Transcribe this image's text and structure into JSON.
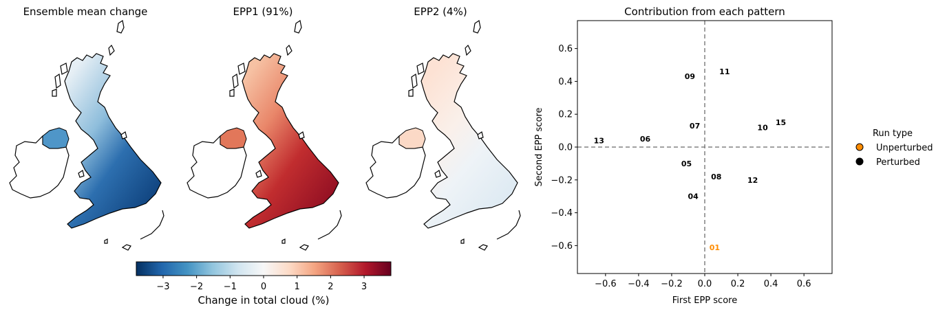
{
  "maps": [
    {
      "title": "Ensemble mean change"
    },
    {
      "title": "EPP1 (91%)"
    },
    {
      "title": "EPP2 (4%)"
    }
  ],
  "colorbar": {
    "label": "Change in total cloud (%)",
    "ticks": [
      -3,
      -2,
      -1,
      0,
      1,
      2,
      3
    ],
    "range": [
      -3.8,
      3.8
    ],
    "colormap": [
      "#053061",
      "#2166ac",
      "#4393c3",
      "#92c5de",
      "#d1e5f0",
      "#f7f7f7",
      "#fddbc7",
      "#f4a582",
      "#d6604d",
      "#b2182b",
      "#67001f"
    ]
  },
  "chart_data": {
    "type": "scatter",
    "title": "Contribution from each pattern",
    "xlabel": "First EPP score",
    "ylabel": "Second EPP score",
    "xlim": [
      -0.77,
      0.77
    ],
    "ylim": [
      -0.77,
      0.77
    ],
    "xticks": [
      -0.6,
      -0.4,
      -0.2,
      0.0,
      0.2,
      0.4,
      0.6
    ],
    "yticks": [
      -0.6,
      -0.4,
      -0.2,
      0.0,
      0.2,
      0.4,
      0.6
    ],
    "reference_lines": {
      "x": 0,
      "y": 0,
      "style": "dashed",
      "color": "#808080"
    },
    "legend": {
      "title": "Run type",
      "placement": "outside-right",
      "entries": [
        {
          "label": "Unperturbed",
          "color": "#ff8c00"
        },
        {
          "label": "Perturbed",
          "color": "#000000"
        }
      ]
    },
    "points": [
      {
        "label": "01",
        "x": 0.06,
        "y": -0.61,
        "type": "Unperturbed"
      },
      {
        "label": "04",
        "x": -0.07,
        "y": -0.3,
        "type": "Perturbed"
      },
      {
        "label": "05",
        "x": -0.11,
        "y": -0.1,
        "type": "Perturbed"
      },
      {
        "label": "06",
        "x": -0.36,
        "y": 0.05,
        "type": "Perturbed"
      },
      {
        "label": "07",
        "x": -0.06,
        "y": 0.13,
        "type": "Perturbed"
      },
      {
        "label": "08",
        "x": 0.07,
        "y": -0.18,
        "type": "Perturbed"
      },
      {
        "label": "09",
        "x": -0.09,
        "y": 0.43,
        "type": "Perturbed"
      },
      {
        "label": "10",
        "x": 0.35,
        "y": 0.12,
        "type": "Perturbed"
      },
      {
        "label": "11",
        "x": 0.12,
        "y": 0.46,
        "type": "Perturbed"
      },
      {
        "label": "12",
        "x": 0.29,
        "y": -0.2,
        "type": "Perturbed"
      },
      {
        "label": "13",
        "x": -0.64,
        "y": 0.04,
        "type": "Perturbed"
      },
      {
        "label": "15",
        "x": 0.46,
        "y": 0.15,
        "type": "Perturbed"
      }
    ]
  }
}
